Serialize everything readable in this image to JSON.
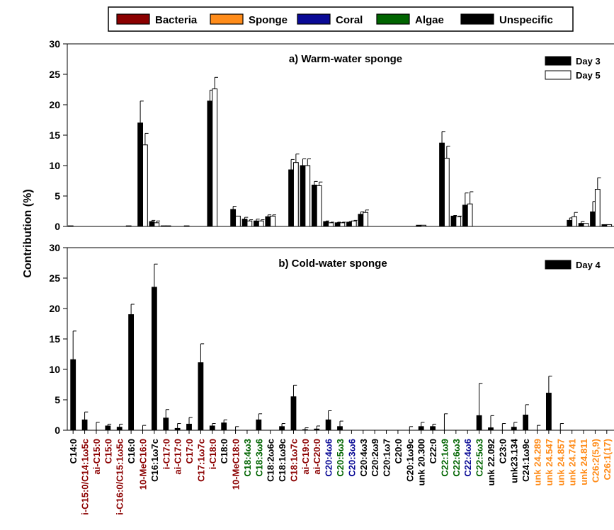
{
  "chart_data": [
    {
      "type": "bar",
      "title": "a)  Warm-water sponge",
      "xlabel": "",
      "ylabel": "Contribution (%)",
      "ylim": [
        0,
        30
      ],
      "yticks": [
        0,
        5,
        10,
        15,
        20,
        25,
        30
      ],
      "grid": false,
      "legend_placement": "top-right",
      "categories": [
        "C14:0",
        "i-C15:0/C14:1ω5c",
        "ai-C15:0",
        "C15:0",
        "i-C16:0/C15:1ω5c",
        "C16:0",
        "10-MeC16:0",
        "C16:1ω7c",
        "i-C17:0",
        "ai-C17:0",
        "C17:0",
        "C17:1ω7c",
        "i-C18:0",
        "C18:0",
        "10-MeC18:0",
        "C18:4ω3",
        "C18:3ω6",
        "C18:2ω6c",
        "C18:1ω9c",
        "C18:1ω7c",
        "ai-C19:0",
        "ai-C20:0",
        "C20:4ω6",
        "C20:5ω3",
        "C20:3ω6",
        "C20:4ω3",
        "C20:2ω9",
        "C20:1ω7",
        "C20:0",
        "C20:1ω9c",
        "unk 20.300",
        "C22:0",
        "C22:1ω9",
        "C22:6ω3",
        "C22:4ω6",
        "C22:5ω3",
        "unk 22.092",
        "C23:0",
        "unk23.134",
        "C24:1ω9c",
        "unk 24.289",
        "unk 24.547",
        "unk 24.857",
        "unk 24.741",
        "unk 24.811",
        "C26:2(5,9)",
        "C26:1(17)"
      ],
      "series": [
        {
          "name": "Day 3",
          "color": "#000000",
          "values": [
            0.1,
            0,
            0,
            0,
            0,
            0.1,
            17.0,
            0.8,
            0.1,
            0,
            0.1,
            0,
            20.6,
            0,
            2.8,
            1.2,
            0.9,
            1.6,
            0,
            9.3,
            10.0,
            6.8,
            0.8,
            0.6,
            0.7,
            2.0,
            0,
            0,
            0,
            0,
            0.2,
            0,
            13.7,
            1.7,
            3.5,
            0,
            0,
            0,
            0,
            0,
            0,
            0,
            0,
            1.0,
            0.5,
            2.4,
            0.3
          ],
          "errors": [
            0,
            0,
            0,
            0,
            0,
            0,
            3.6,
            0.2,
            0,
            0,
            0,
            0,
            1.8,
            0,
            0.5,
            0.3,
            0.3,
            0.3,
            0,
            1.7,
            1.1,
            0.6,
            0.1,
            0.1,
            0.1,
            0.4,
            0,
            0,
            0,
            0,
            0,
            0,
            1.9,
            0.1,
            2.0,
            0,
            0,
            0,
            0,
            0,
            0,
            0,
            0,
            0.4,
            0.3,
            1.7,
            0
          ]
        },
        {
          "name": "Day 5",
          "color": "#ffffff",
          "values": [
            0,
            0,
            0,
            0,
            0,
            0,
            13.4,
            0.6,
            0.1,
            0,
            0,
            0,
            22.6,
            0,
            1.7,
            0.9,
            0.9,
            1.7,
            0,
            10.5,
            10.0,
            6.7,
            0.6,
            0.6,
            0.9,
            2.3,
            0,
            0,
            0,
            0,
            0.2,
            0,
            11.2,
            1.6,
            3.7,
            0,
            0,
            0,
            0,
            0,
            0,
            0,
            0,
            1.6,
            0.5,
            6.1,
            0.3
          ],
          "errors": [
            0,
            0,
            0,
            0,
            0,
            0,
            1.9,
            0.3,
            0,
            0,
            0,
            0,
            1.9,
            0,
            0,
            0.2,
            0.2,
            0.2,
            0,
            1.4,
            1.1,
            0.6,
            0.1,
            0.1,
            0.1,
            0.4,
            0,
            0,
            0,
            0,
            0,
            0,
            2.0,
            0.1,
            2.0,
            0,
            0,
            0,
            0,
            0,
            0,
            0,
            0,
            0.7,
            0,
            1.9,
            0
          ]
        }
      ]
    },
    {
      "type": "bar",
      "title": "b)  Cold-water sponge",
      "xlabel": "",
      "ylabel": "Contribution (%)",
      "ylim": [
        0,
        30
      ],
      "yticks": [
        0,
        5,
        10,
        15,
        20,
        25,
        30
      ],
      "grid": false,
      "legend_placement": "top-right",
      "series": [
        {
          "name": "Day 4",
          "color": "#000000",
          "values": [
            11.6,
            1.7,
            0,
            0.7,
            0.5,
            19.0,
            0,
            23.5,
            2.0,
            0.3,
            1.0,
            11.1,
            0.7,
            1.2,
            0,
            0,
            1.7,
            0,
            0.6,
            5.5,
            0.1,
            0.2,
            1.7,
            0.6,
            0,
            0,
            0,
            0,
            0,
            0,
            0.6,
            0.6,
            0,
            0,
            0,
            2.4,
            0.4,
            0,
            0.5,
            2.5,
            0,
            6.1,
            0,
            0,
            0,
            0,
            0
          ],
          "errors": [
            4.7,
            1.3,
            1.3,
            0.3,
            0.5,
            1.7,
            0.8,
            3.8,
            1.4,
            0.8,
            1.1,
            3.1,
            0.4,
            0.5,
            0.6,
            0,
            1.0,
            0,
            0.5,
            1.9,
            0.3,
            0.5,
            1.5,
            0.9,
            0,
            0,
            0,
            0,
            0,
            0.6,
            0.7,
            0.4,
            2.7,
            0,
            0,
            5.3,
            2.0,
            1.1,
            0.8,
            1.7,
            0.8,
            2.8,
            1.1,
            0,
            0,
            0,
            0
          ]
        }
      ]
    }
  ],
  "legend": [
    {
      "label": "Bacteria",
      "color": "#8b0000"
    },
    {
      "label": "Sponge",
      "color": "#ff8c1a"
    },
    {
      "label": "Coral",
      "color": "#0a0a96"
    },
    {
      "label": "Algae",
      "color": "#006400"
    },
    {
      "label": "Unspecific",
      "color": "#000000"
    }
  ],
  "category_groups": [
    "unspecific",
    "bacteria",
    "bacteria",
    "bacteria",
    "bacteria",
    "unspecific",
    "bacteria",
    "unspecific",
    "bacteria",
    "bacteria",
    "bacteria",
    "bacteria",
    "bacteria",
    "unspecific",
    "bacteria",
    "algae",
    "algae",
    "unspecific",
    "unspecific",
    "bacteria",
    "bacteria",
    "bacteria",
    "coral",
    "algae",
    "coral",
    "unspecific",
    "unspecific",
    "unspecific",
    "unspecific",
    "unspecific",
    "unspecific",
    "unspecific",
    "algae",
    "algae",
    "coral",
    "algae",
    "unspecific",
    "unspecific",
    "unspecific",
    "unspecific",
    "sponge",
    "sponge",
    "sponge",
    "sponge",
    "sponge",
    "sponge",
    "sponge"
  ],
  "group_colors": {
    "bacteria": "#8b0000",
    "sponge": "#ff8c1a",
    "coral": "#0a0a96",
    "algae": "#006400",
    "unspecific": "#000000"
  }
}
